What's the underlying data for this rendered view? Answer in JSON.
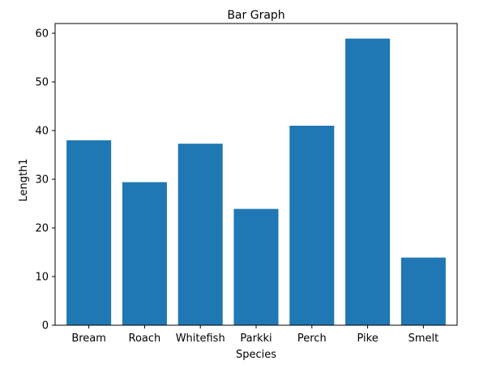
{
  "chart_data": {
    "type": "bar",
    "title": "Bar Graph",
    "xlabel": "Species",
    "ylabel": "Length1",
    "categories": [
      "Bream",
      "Roach",
      "Whitefish",
      "Parkki",
      "Perch",
      "Pike",
      "Smelt"
    ],
    "values": [
      38.0,
      29.4,
      37.3,
      23.9,
      41.0,
      58.9,
      13.9
    ],
    "ylim": [
      0,
      62
    ],
    "yticks": [
      0,
      10,
      20,
      30,
      40,
      50,
      60
    ],
    "grid": false,
    "bar_color": "#1f77b4"
  }
}
